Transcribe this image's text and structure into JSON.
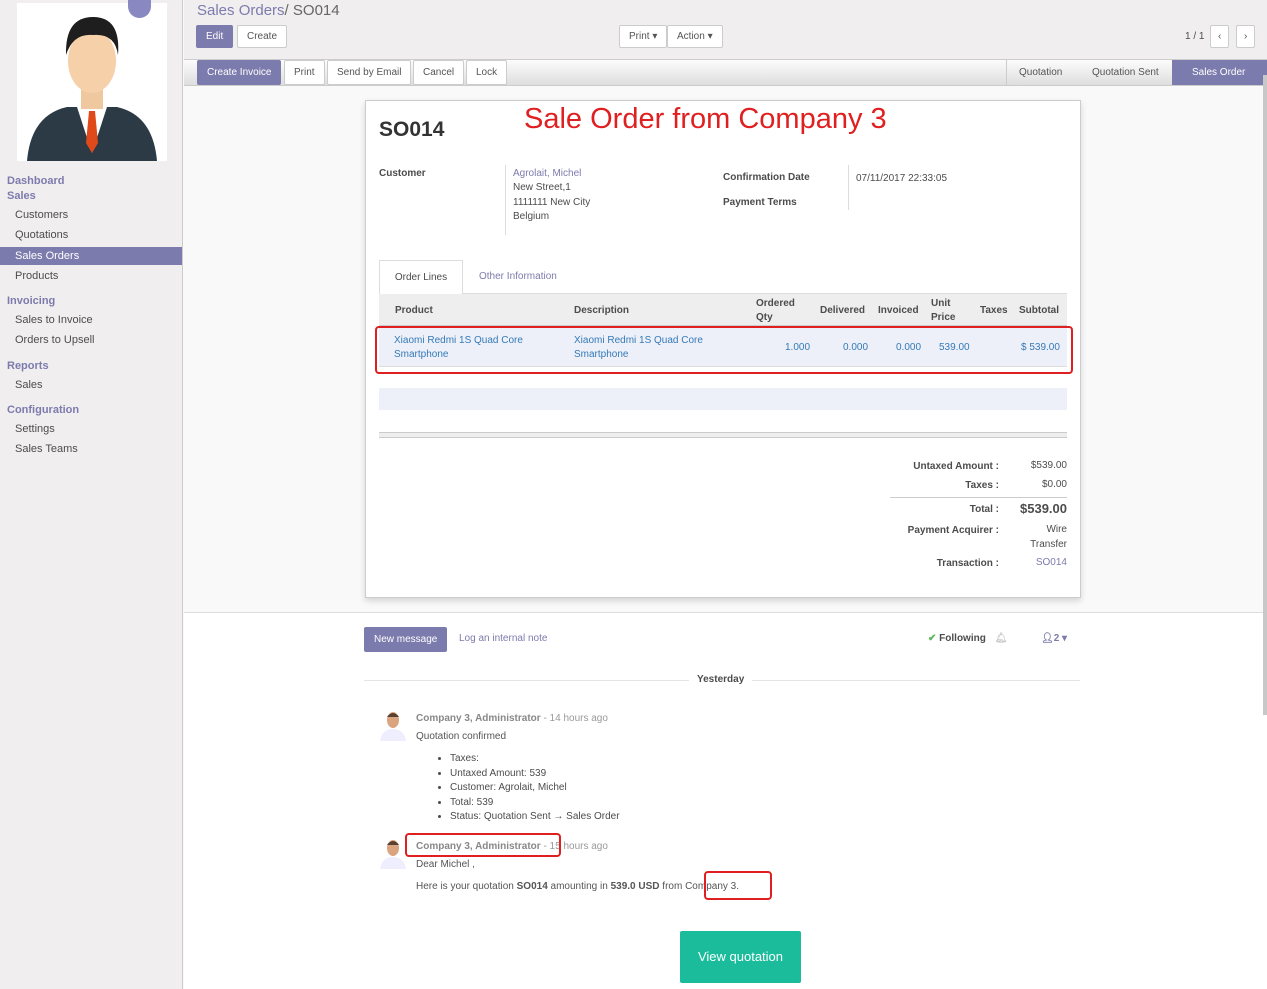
{
  "sidebar": {
    "sections": [
      {
        "title": "Dashboard"
      },
      {
        "title": "Sales",
        "items": [
          "Customers",
          "Quotations",
          "Sales Orders",
          "Products"
        ]
      },
      {
        "title": "Invoicing",
        "items": [
          "Sales to Invoice",
          "Orders to Upsell"
        ]
      },
      {
        "title": "Reports",
        "items": [
          "Sales"
        ]
      },
      {
        "title": "Configuration",
        "items": [
          "Settings",
          "Sales Teams"
        ]
      }
    ],
    "active": "Sales Orders"
  },
  "breadcrumb": {
    "parent": "Sales Orders",
    "separator": "/",
    "current": "SO014"
  },
  "toolbar": {
    "edit": "Edit",
    "create": "Create",
    "print": "Print",
    "action": "Action",
    "pager": "1 / 1"
  },
  "statusbar": {
    "buttons": [
      "Create Invoice",
      "Print",
      "Send by Email",
      "Cancel",
      "Lock"
    ],
    "stages": [
      "Quotation",
      "Quotation Sent",
      "Sales Order"
    ],
    "active_stage": "Sales Order"
  },
  "sheet": {
    "name": "SO014",
    "annotation": "Sale Order from Company 3",
    "customer_label": "Customer",
    "customer": {
      "name": "Agrolait, Michel",
      "street": "New Street,1",
      "city": "1111111 New City",
      "country": "Belgium"
    },
    "confirmation_date_label": "Confirmation Date",
    "confirmation_date": "07/11/2017 22:33:05",
    "payment_terms_label": "Payment Terms",
    "tabs": [
      "Order Lines",
      "Other Information"
    ],
    "columns": [
      "Product",
      "Description",
      "Ordered Qty",
      "Delivered",
      "Invoiced",
      "Unit Price",
      "Taxes",
      "Subtotal"
    ],
    "lines": [
      {
        "product": "Xiaomi Redmi 1S Quad Core Smartphone",
        "description": "Xiaomi Redmi 1S Quad Core Smartphone",
        "qty": "1.000",
        "delivered": "0.000",
        "invoiced": "0.000",
        "unit_price": "539.00",
        "taxes": "",
        "subtotal": "$ 539.00"
      }
    ],
    "totals": {
      "untaxed_label": "Untaxed Amount :",
      "untaxed": "$539.00",
      "taxes_label": "Taxes :",
      "taxes": "$0.00",
      "total_label": "Total :",
      "total": "$539.00",
      "acquirer_label": "Payment Acquirer :",
      "acquirer": "Wire Transfer",
      "transaction_label": "Transaction :",
      "transaction": "SO014"
    }
  },
  "chatter": {
    "new_message": "New message",
    "log_note": "Log an internal note",
    "following": "Following",
    "followers": "2",
    "date_sep": "Yesterday",
    "messages": [
      {
        "author": "Company 3, Administrator",
        "time": "- 14 hours ago",
        "body": "Quotation confirmed",
        "changes": [
          "Taxes:",
          "Untaxed Amount: 539",
          "Customer: Agrolait, Michel",
          "Total: 539",
          "Status: Quotation Sent → Sales Order"
        ]
      },
      {
        "author": "Company 3, Administrator",
        "time": "- 15 hours ago",
        "greeting": "Dear Michel ,",
        "body_pre": "Here is your quotation ",
        "body_ref": "SO014",
        "body_mid": " amounting in ",
        "body_amount": "539.0 USD",
        "body_from": " from ",
        "body_company": "Company 3.",
        "button": "View quotation"
      }
    ]
  },
  "colors": {
    "brand": "#7c7bad",
    "annotation": "#e02020",
    "view_button": "#1abc9c"
  }
}
